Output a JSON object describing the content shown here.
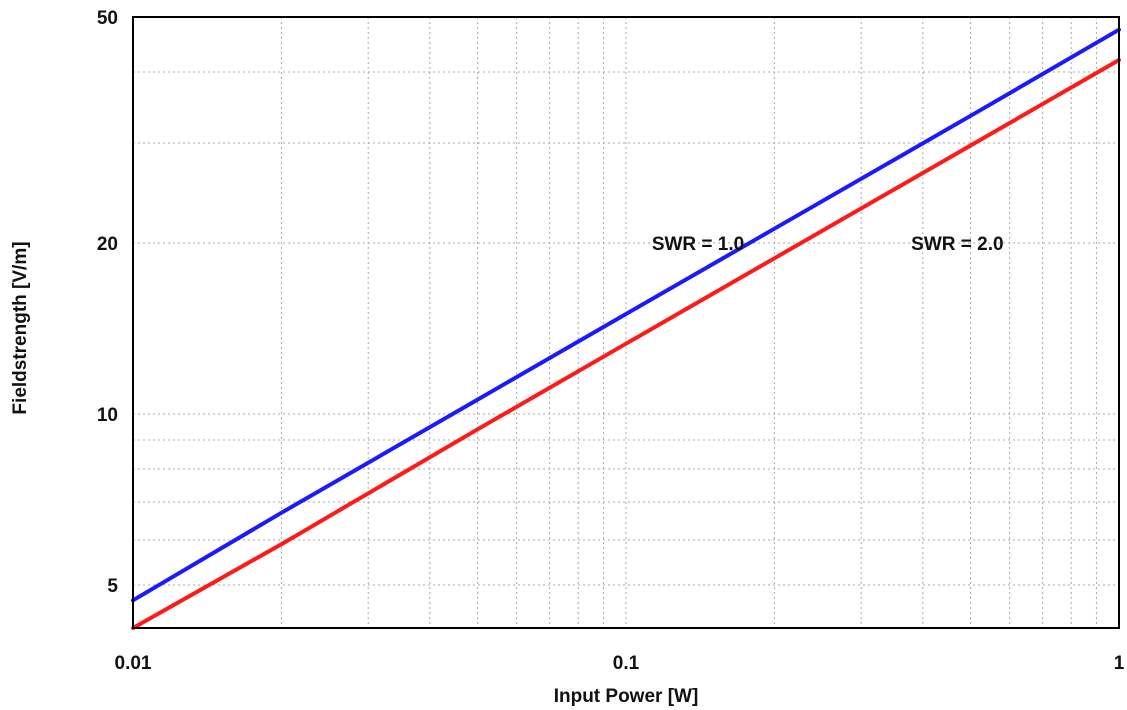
{
  "chart_data": {
    "type": "line",
    "title": "",
    "xlabel": "Input Power [W]",
    "ylabel": "Fieldstrength [V/m]",
    "x_scale": "log",
    "y_scale": "log",
    "xlim": [
      0.01,
      1
    ],
    "ylim": [
      4.2,
      50
    ],
    "x_ticks": [
      {
        "value": 0.01,
        "label": "0.01"
      },
      {
        "value": 0.1,
        "label": "0.1"
      },
      {
        "value": 1,
        "label": "1"
      }
    ],
    "y_ticks": [
      {
        "value": 5,
        "label": "5"
      },
      {
        "value": 10,
        "label": "10"
      },
      {
        "value": 20,
        "label": "20"
      },
      {
        "value": 50,
        "label": "50"
      }
    ],
    "grid": true,
    "series": [
      {
        "color": "#1a1aff",
        "x": [
          0.01,
          0.02,
          0.05,
          0.1,
          0.2,
          0.5,
          1
        ],
        "y": [
          4.7,
          6.7,
          10.6,
          15.0,
          21.2,
          33.5,
          47.5
        ]
      },
      {
        "color": "#ff1a1a",
        "x": [
          0.01,
          0.02,
          0.05,
          0.1,
          0.2,
          0.5,
          1
        ],
        "y": [
          4.2,
          5.9,
          9.4,
          13.3,
          18.8,
          29.7,
          42.0
        ]
      }
    ],
    "annotations": [
      {
        "text": "SWR = 1.0",
        "x": 0.14,
        "y": 20
      },
      {
        "text": "SWR = 2.0",
        "x": 0.47,
        "y": 20
      }
    ]
  }
}
